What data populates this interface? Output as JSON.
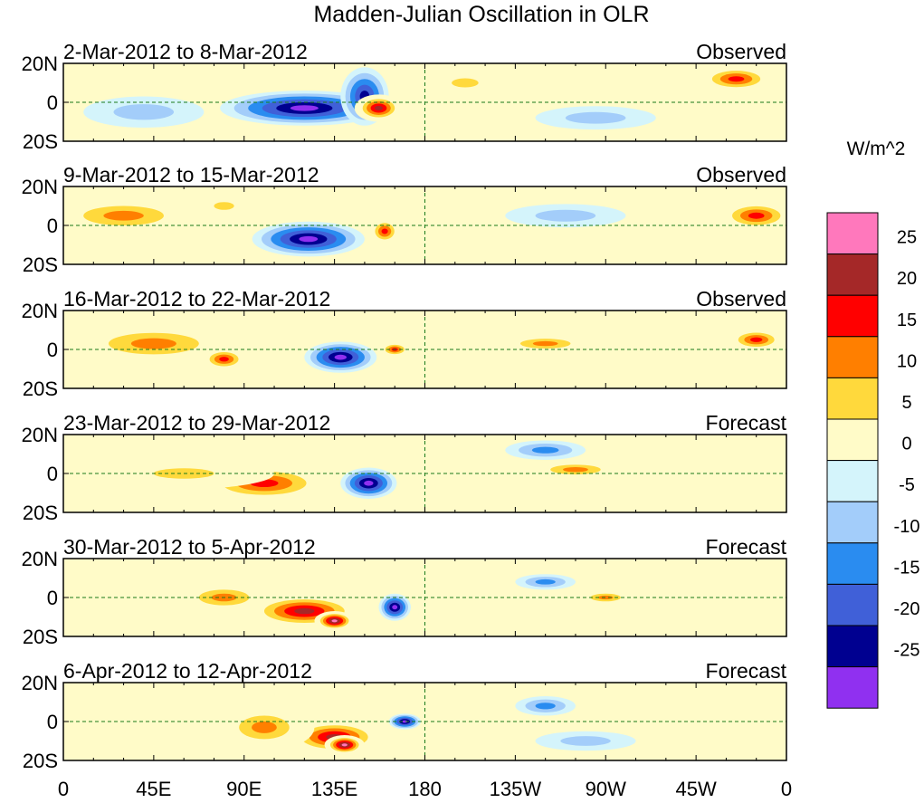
{
  "chart_data": {
    "type": "heatmap",
    "title": "Madden-Julian Oscillation in OLR",
    "units_label": "W/m^2",
    "x_ticks": [
      "0",
      "45E",
      "90E",
      "135E",
      "180",
      "135W",
      "90W",
      "45W",
      "0"
    ],
    "y_ticks": [
      "20N",
      "0",
      "20S"
    ],
    "x_range_deg": [
      0,
      360
    ],
    "y_range_deg": [
      -20,
      20
    ],
    "panels": [
      {
        "period": "2-Mar-2012 to 8-Mar-2012",
        "kind": "Observed",
        "features": [
          {
            "lon": 120,
            "lat": -3,
            "rx": 42,
            "ry": 9,
            "value": -30
          },
          {
            "lon": 150,
            "lat": 3,
            "rx": 12,
            "ry": 15,
            "value": -20
          },
          {
            "lon": 157,
            "lat": -3,
            "rx": 12,
            "ry": 7,
            "value": 22
          },
          {
            "lon": 200,
            "lat": 10,
            "rx": 20,
            "ry": 7,
            "value": 8
          },
          {
            "lon": 335,
            "lat": 12,
            "rx": 20,
            "ry": 7,
            "value": 18
          },
          {
            "lon": 265,
            "lat": -8,
            "rx": 30,
            "ry": 6,
            "value": -8
          },
          {
            "lon": 40,
            "lat": -5,
            "rx": 30,
            "ry": 8,
            "value": -8
          }
        ]
      },
      {
        "period": "9-Mar-2012 to 15-Mar-2012",
        "kind": "Observed",
        "features": [
          {
            "lon": 122,
            "lat": -7,
            "rx": 28,
            "ry": 9,
            "value": -30
          },
          {
            "lon": 160,
            "lat": -3,
            "rx": 8,
            "ry": 7,
            "value": 18
          },
          {
            "lon": 30,
            "lat": 5,
            "rx": 40,
            "ry": 10,
            "value": 12
          },
          {
            "lon": 345,
            "lat": 5,
            "rx": 20,
            "ry": 8,
            "value": 18
          },
          {
            "lon": 80,
            "lat": 10,
            "rx": 15,
            "ry": 6,
            "value": 8
          },
          {
            "lon": 250,
            "lat": 5,
            "rx": 30,
            "ry": 6,
            "value": -8
          }
        ]
      },
      {
        "period": "16-Mar-2012 to 22-Mar-2012",
        "kind": "Observed",
        "features": [
          {
            "lon": 138,
            "lat": -4,
            "rx": 18,
            "ry": 8,
            "value": -30
          },
          {
            "lon": 45,
            "lat": 3,
            "rx": 45,
            "ry": 11,
            "value": 12
          },
          {
            "lon": 80,
            "lat": -5,
            "rx": 12,
            "ry": 6,
            "value": 18
          },
          {
            "lon": 165,
            "lat": 0,
            "rx": 8,
            "ry": 4,
            "value": 18
          },
          {
            "lon": 240,
            "lat": 3,
            "rx": 25,
            "ry": 5,
            "value": 10
          },
          {
            "lon": 345,
            "lat": 5,
            "rx": 15,
            "ry": 6,
            "value": 15
          }
        ]
      },
      {
        "period": "23-Mar-2012 to 29-Mar-2012",
        "kind": "Forecast",
        "features": [
          {
            "lon": 100,
            "lat": -5,
            "rx": 35,
            "ry": 10,
            "value": 18
          },
          {
            "lon": 60,
            "lat": 0,
            "rx": 45,
            "ry": 8,
            "value": 8
          },
          {
            "lon": 152,
            "lat": -5,
            "rx": 14,
            "ry": 8,
            "value": -30
          },
          {
            "lon": 255,
            "lat": 2,
            "rx": 25,
            "ry": 5,
            "value": 12
          },
          {
            "lon": 240,
            "lat": 12,
            "rx": 20,
            "ry": 5,
            "value": -12
          }
        ]
      },
      {
        "period": "30-Mar-2012 to 5-Apr-2012",
        "kind": "Forecast",
        "features": [
          {
            "lon": 120,
            "lat": -7,
            "rx": 30,
            "ry": 9,
            "value": 22
          },
          {
            "lon": 135,
            "lat": -12,
            "rx": 10,
            "ry": 5,
            "value": 30
          },
          {
            "lon": 165,
            "lat": -5,
            "rx": 8,
            "ry": 7,
            "value": -30
          },
          {
            "lon": 80,
            "lat": 0,
            "rx": 25,
            "ry": 8,
            "value": 10
          },
          {
            "lon": 240,
            "lat": 8,
            "rx": 15,
            "ry": 4,
            "value": -14
          },
          {
            "lon": 270,
            "lat": 0,
            "rx": 15,
            "ry": 4,
            "value": 10
          }
        ]
      },
      {
        "period": "6-Apr-2012 to 12-Apr-2012",
        "kind": "Forecast",
        "features": [
          {
            "lon": 135,
            "lat": -8,
            "rx": 25,
            "ry": 9,
            "value": 22
          },
          {
            "lon": 140,
            "lat": -12,
            "rx": 10,
            "ry": 5,
            "value": 30
          },
          {
            "lon": 100,
            "lat": -3,
            "rx": 25,
            "ry": 12,
            "value": 10
          },
          {
            "lon": 170,
            "lat": 0,
            "rx": 8,
            "ry": 4,
            "value": -30
          },
          {
            "lon": 240,
            "lat": 8,
            "rx": 15,
            "ry": 5,
            "value": -12
          },
          {
            "lon": 260,
            "lat": -10,
            "rx": 25,
            "ry": 5,
            "value": -7
          }
        ]
      }
    ],
    "colorbar": {
      "tick_labels": [
        "25",
        "20",
        "15",
        "10",
        "5",
        "0",
        "-5",
        "-10",
        "-15",
        "-20",
        "-25"
      ],
      "colors": [
        "#ff78bc",
        "#a52828",
        "#ff0000",
        "#ff7f00",
        "#ffd93c",
        "#fffbc8",
        "#d4f4fb",
        "#a3cdfa",
        "#2a8cf0",
        "#4060d8",
        "#000090",
        "#9030f0"
      ]
    }
  }
}
